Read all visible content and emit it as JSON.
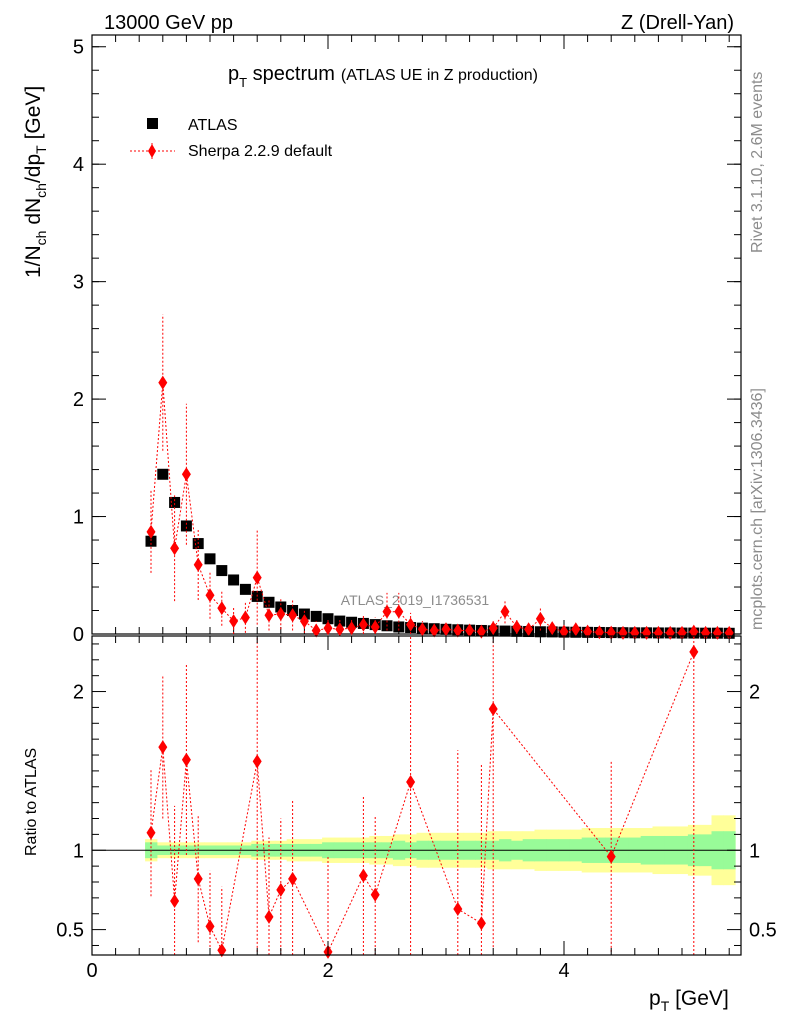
{
  "header": {
    "energy": "13000 GeV pp",
    "process": "Z (Drell-Yan)"
  },
  "side_labels": {
    "rivet": "Rivet 3.1.10,  2.6M events",
    "mcplots": "mcplots.cern.ch [arXiv:1306.3436]"
  },
  "colors": {
    "mc": "#ff0000",
    "data": "#000000",
    "band_inner": "#98fb98",
    "band_outer": "#ffff99"
  },
  "chart_data": [
    {
      "type": "scatter",
      "title": "p_T spectrum",
      "title_main": "p",
      "title_sub": "T",
      "title_rest": " spectrum",
      "title_note": "(ATLAS UE in Z production)",
      "watermark": "ATLAS_2019_I1736531",
      "xlabel": "p_T [GeV]",
      "ylabel": "1/N_ch dN_ch/dp_T [GeV]",
      "xlim": [
        0,
        5.5
      ],
      "ylim": [
        0,
        5.1
      ],
      "xticks": [
        "0",
        "2",
        "4"
      ],
      "yticks": [
        "0",
        "1",
        "2",
        "3",
        "4",
        "5"
      ],
      "legend": [
        {
          "name": "ATLAS",
          "marker": "square"
        },
        {
          "name": "Sherpa 2.2.9 default",
          "marker": "diamond"
        }
      ],
      "series": [
        {
          "name": "ATLAS",
          "x": [
            0.5,
            0.6,
            0.7,
            0.8,
            0.9,
            1.0,
            1.1,
            1.2,
            1.3,
            1.4,
            1.5,
            1.6,
            1.7,
            1.8,
            1.9,
            2.0,
            2.1,
            2.2,
            2.3,
            2.4,
            2.5,
            2.6,
            2.7,
            2.8,
            2.9,
            3.0,
            3.1,
            3.2,
            3.3,
            3.4,
            3.5,
            3.6,
            3.7,
            3.8,
            3.9,
            4.0,
            4.1,
            4.2,
            4.3,
            4.4,
            4.5,
            4.6,
            4.7,
            4.8,
            4.9,
            5.0,
            5.1,
            5.2,
            5.3,
            5.4
          ],
          "y": [
            0.79,
            1.36,
            1.12,
            0.92,
            0.77,
            0.64,
            0.54,
            0.46,
            0.38,
            0.32,
            0.27,
            0.23,
            0.2,
            0.17,
            0.15,
            0.13,
            0.11,
            0.1,
            0.09,
            0.08,
            0.07,
            0.06,
            0.055,
            0.05,
            0.045,
            0.04,
            0.036,
            0.033,
            0.03,
            0.027,
            0.025,
            0.023,
            0.021,
            0.019,
            0.018,
            0.016,
            0.015,
            0.014,
            0.013,
            0.012,
            0.011,
            0.01,
            0.01,
            0.009,
            0.009,
            0.008,
            0.008,
            0.007,
            0.007,
            0.006
          ]
        },
        {
          "name": "Sherpa 2.2.9 default",
          "x": [
            0.5,
            0.6,
            0.7,
            0.8,
            0.9,
            1.0,
            1.1,
            1.2,
            1.3,
            1.4,
            1.5,
            1.6,
            1.7,
            1.8,
            1.9,
            2.0,
            2.1,
            2.2,
            2.3,
            2.4,
            2.5,
            2.6,
            2.7,
            2.8,
            2.9,
            3.0,
            3.1,
            3.2,
            3.3,
            3.4,
            3.5,
            3.6,
            3.7,
            3.8,
            3.9,
            4.0,
            4.1,
            4.2,
            4.3,
            4.4,
            4.5,
            4.6,
            4.7,
            4.8,
            4.9,
            5.0,
            5.1,
            5.2,
            5.3,
            5.4
          ],
          "y": [
            0.87,
            2.14,
            0.73,
            1.36,
            0.59,
            0.33,
            0.22,
            0.11,
            0.14,
            0.48,
            0.16,
            0.17,
            0.16,
            0.11,
            0.03,
            0.05,
            0.04,
            0.05,
            0.08,
            0.06,
            0.19,
            0.19,
            0.08,
            0.04,
            0.03,
            0.04,
            0.03,
            0.03,
            0.02,
            0.05,
            0.19,
            0.06,
            0.04,
            0.13,
            0.05,
            0.02,
            0.04,
            0.02,
            0.015,
            0.012,
            0.01,
            0.01,
            0.01,
            0.01,
            0.01,
            0.01,
            0.02,
            0.01,
            0.01,
            0.01
          ],
          "err": [
            0.35,
            0.58,
            0.45,
            0.6,
            0.3,
            0.2,
            0.15,
            0.12,
            0.13,
            0.4,
            0.13,
            0.13,
            0.13,
            0.1,
            0.08,
            0.08,
            0.08,
            0.08,
            0.08,
            0.08,
            0.16,
            0.16,
            0.1,
            0.07,
            0.06,
            0.06,
            0.05,
            0.05,
            0.05,
            0.06,
            0.1,
            0.06,
            0.05,
            0.1,
            0.05,
            0.04,
            0.05,
            0.03,
            0.03,
            0.02,
            0.02,
            0.02,
            0.02,
            0.02,
            0.02,
            0.02,
            0.03,
            0.02,
            0.02,
            0.02
          ]
        }
      ]
    },
    {
      "type": "scatter",
      "title": "Ratio to ATLAS",
      "ylabel": "Ratio to ATLAS",
      "xlim": [
        0,
        5.5
      ],
      "ylim": [
        0.34,
        2.35
      ],
      "yticks": [
        "0.5",
        "1",
        "2"
      ],
      "ytick_values": [
        0.5,
        1,
        2
      ],
      "band_x": [
        0.45,
        0.55,
        0.65,
        0.75,
        0.85,
        0.95,
        1.05,
        1.15,
        1.25,
        1.35,
        1.45,
        1.55,
        1.65,
        1.75,
        1.85,
        1.95,
        2.05,
        2.15,
        2.25,
        2.35,
        2.45,
        2.55,
        2.65,
        2.75,
        2.85,
        2.95,
        3.05,
        3.15,
        3.25,
        3.35,
        3.45,
        3.55,
        3.65,
        3.75,
        3.85,
        3.95,
        4.05,
        4.15,
        4.25,
        4.35,
        4.45,
        4.55,
        4.65,
        4.75,
        4.85,
        4.95,
        5.05,
        5.15,
        5.25,
        5.35,
        5.45
      ],
      "band_inner_half": [
        0.05,
        0.03,
        0.03,
        0.03,
        0.03,
        0.03,
        0.03,
        0.03,
        0.03,
        0.04,
        0.04,
        0.04,
        0.04,
        0.04,
        0.04,
        0.05,
        0.05,
        0.05,
        0.05,
        0.05,
        0.05,
        0.06,
        0.05,
        0.06,
        0.06,
        0.06,
        0.06,
        0.06,
        0.06,
        0.06,
        0.07,
        0.06,
        0.07,
        0.07,
        0.07,
        0.07,
        0.07,
        0.08,
        0.08,
        0.08,
        0.08,
        0.08,
        0.09,
        0.09,
        0.09,
        0.09,
        0.1,
        0.1,
        0.12,
        0.12
      ],
      "band_outer_half": [
        0.07,
        0.05,
        0.05,
        0.05,
        0.05,
        0.05,
        0.05,
        0.05,
        0.05,
        0.06,
        0.06,
        0.06,
        0.07,
        0.07,
        0.07,
        0.08,
        0.08,
        0.08,
        0.08,
        0.09,
        0.09,
        0.1,
        0.1,
        0.11,
        0.11,
        0.11,
        0.11,
        0.11,
        0.11,
        0.12,
        0.12,
        0.12,
        0.12,
        0.13,
        0.13,
        0.13,
        0.13,
        0.14,
        0.14,
        0.14,
        0.14,
        0.14,
        0.14,
        0.15,
        0.15,
        0.15,
        0.16,
        0.16,
        0.22,
        0.22
      ],
      "series": [
        {
          "name": "Sherpa 2.2.9 default",
          "x": [
            0.5,
            0.6,
            0.7,
            0.8,
            0.9,
            1.0,
            1.1,
            1.4,
            1.5,
            1.6,
            1.7,
            2.0,
            2.3,
            2.4,
            2.7,
            3.1,
            3.3,
            3.4,
            4.4,
            5.1
          ],
          "y": [
            1.11,
            1.65,
            0.68,
            1.57,
            0.82,
            0.52,
            0.37,
            1.56,
            0.58,
            0.75,
            0.82,
            0.36,
            0.84,
            0.72,
            1.43,
            0.63,
            0.54,
            1.89,
            0.96,
            2.25
          ],
          "err": [
            0.4,
            0.45,
            0.6,
            0.6,
            0.4,
            0.35,
            0.4,
            1.2,
            0.5,
            0.45,
            0.5,
            0.6,
            0.5,
            0.5,
            1.2,
            1.0,
            1.0,
            1.5,
            0.6,
            2.0
          ]
        }
      ]
    }
  ]
}
